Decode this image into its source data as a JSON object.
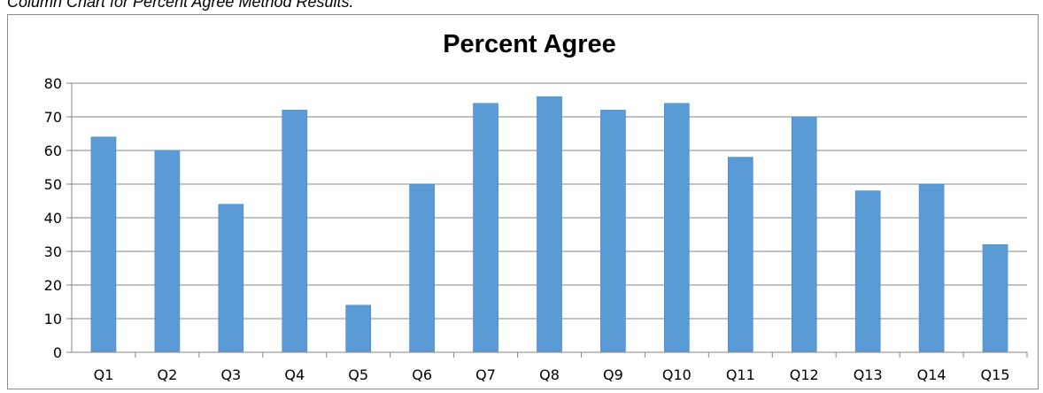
{
  "figure": {
    "caption": "Column Chart for Percent Agree Method Results."
  },
  "chart_data": {
    "type": "bar",
    "title": "Percent Agree",
    "xlabel": "",
    "ylabel": "",
    "categories": [
      "Q1",
      "Q2",
      "Q3",
      "Q4",
      "Q5",
      "Q6",
      "Q7",
      "Q8",
      "Q9",
      "Q10",
      "Q11",
      "Q12",
      "Q13",
      "Q14",
      "Q15"
    ],
    "values": [
      64,
      60,
      44,
      72,
      14,
      50,
      74,
      76,
      72,
      74,
      58,
      70,
      48,
      50,
      32
    ],
    "ylim": [
      0,
      80
    ],
    "yticks": [
      "0",
      "10",
      "20",
      "30",
      "40",
      "50",
      "60",
      "70",
      "80"
    ],
    "grid": true,
    "legend": "none",
    "bar_color": "#5b9bd5",
    "bar_edge_color": "#4a86c0"
  }
}
